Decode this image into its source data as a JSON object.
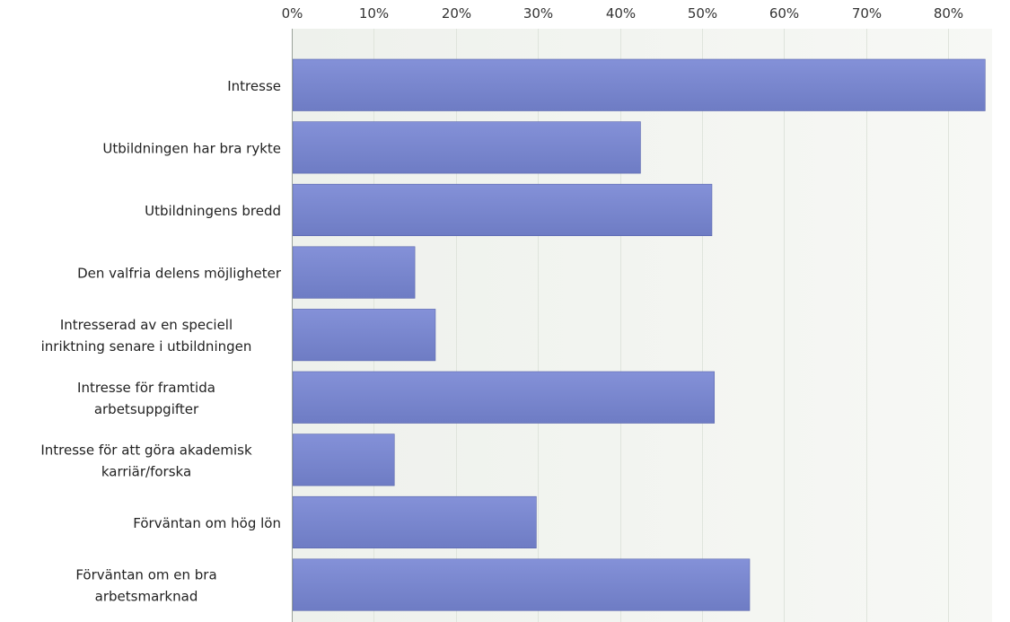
{
  "chart_data": {
    "type": "bar",
    "orientation": "horizontal",
    "categories": [
      [
        "Intresse"
      ],
      [
        "Utbildningen har bra rykte"
      ],
      [
        "Utbildningens bredd"
      ],
      [
        "Den valfria delens möjligheter"
      ],
      [
        "Intresserad av en speciell",
        "inriktning senare i utbildningen"
      ],
      [
        "Intresse för framtida",
        "arbetsuppgifter"
      ],
      [
        "Intresse för att göra akademisk",
        "karriär/forska"
      ],
      [
        "Förväntan om hög lön"
      ],
      [
        "Förväntan om en bra",
        "arbetsmarknad"
      ]
    ],
    "values": [
      84.5,
      42.5,
      51.2,
      15.0,
      17.5,
      51.5,
      12.5,
      29.8,
      55.8
    ],
    "x_ticks": [
      "0%",
      "10%",
      "20%",
      "30%",
      "40%",
      "50%",
      "60%",
      "70%",
      "80%"
    ],
    "xlim": [
      0,
      85.5
    ],
    "grid": true,
    "x_axis_position": "top",
    "colors": {
      "bar_top": "#8491d8",
      "bar_bottom": "#6e7cc4",
      "bar_edge": "#5a66ad",
      "plot_bg": "#f3f5f1"
    }
  }
}
